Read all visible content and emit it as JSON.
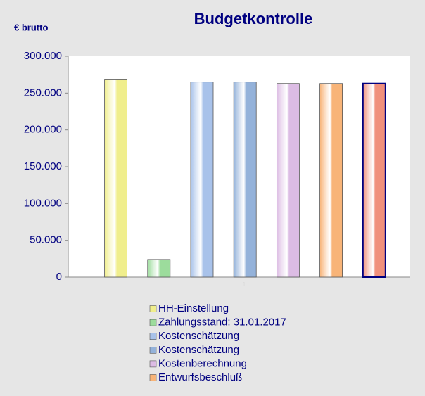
{
  "chart_data": {
    "type": "bar",
    "title": "Budgetkontrolle",
    "y_label": "€ brutto",
    "categories": [
      "1"
    ],
    "series": [
      {
        "name": "HH-Einstellung",
        "color": "#f0ee8c",
        "values": [
          268000
        ]
      },
      {
        "name": "Zahlungsstand: 31.01.2017",
        "color": "#9cdc9c",
        "values": [
          24000
        ]
      },
      {
        "name": "Kostenschätzung",
        "color": "#a8c2ea",
        "values": [
          265000
        ]
      },
      {
        "name": "Kostenschätzung",
        "color": "#94b2da",
        "values": [
          265000
        ]
      },
      {
        "name": "Kostenberechnung",
        "color": "#dcbce4",
        "values": [
          263000
        ]
      },
      {
        "name": "Entwurfsbeschluß",
        "color": "#f8b478",
        "values": [
          263000
        ]
      },
      {
        "color": "#f0907c",
        "values": [
          263000
        ]
      }
    ],
    "ylim": [
      0,
      300000
    ],
    "yticks": [
      0,
      {
        "value": 50000,
        "label": "50.000"
      },
      {
        "value": 100000,
        "label": "100.000"
      },
      {
        "value": 150000,
        "label": "150.000"
      },
      {
        "value": 200000,
        "label": "200.000"
      },
      {
        "value": 250000,
        "label": "250.000"
      },
      {
        "value": 300000,
        "label": "300.000"
      }
    ],
    "grid": false
  }
}
